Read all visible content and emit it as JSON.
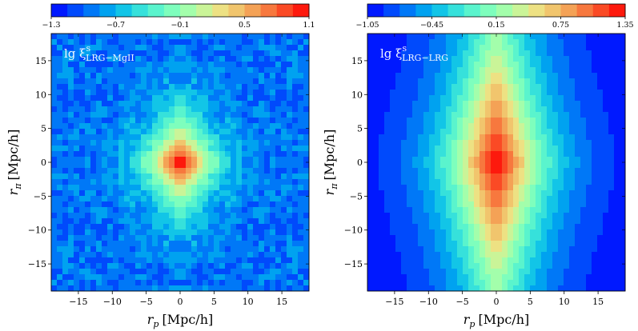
{
  "chart_data": [
    {
      "type": "heatmap",
      "label": "lg ξ^s_LRG−MgII",
      "label_main": "lg ξ",
      "label_sup": "s",
      "label_sub": "LRG−MgII",
      "xlabel": "r_p [Mpc/h]",
      "xlabel_main": "r",
      "xlabel_sub": "p",
      "xlabel_units": "[Mpc/h]",
      "ylabel": "r_π [Mpc/h]",
      "ylabel_main": "r",
      "ylabel_sub": "π",
      "ylabel_units": "[Mpc/h]",
      "xlim": [
        -19,
        19
      ],
      "ylim": [
        -19,
        19
      ],
      "xticks": [
        -15,
        -10,
        -5,
        0,
        5,
        10,
        15
      ],
      "yticks": [
        -15,
        -10,
        -5,
        0,
        5,
        10,
        15
      ],
      "xtick_labels": [
        "−15",
        "−10",
        "−5",
        "0",
        "5",
        "10",
        "15"
      ],
      "ytick_labels": [
        "−15",
        "−10",
        "−5",
        "0",
        "5",
        "10",
        "15"
      ],
      "colorbar": {
        "min": -1.3,
        "max": 1.1,
        "levels": 16,
        "ticks": [
          -1.3,
          -0.7,
          -0.1,
          0.5,
          1.1
        ],
        "tick_labels": [
          "−1.3",
          "−0.7",
          "−0.1",
          "0.5",
          "1.1"
        ]
      },
      "field": {
        "peak": 1.1,
        "base": -0.95,
        "sigma_p": 4.5,
        "sigma_pi": 6.0,
        "shape_exp": 1.2,
        "noise": 0.28,
        "seed": 7
      }
    },
    {
      "type": "heatmap",
      "label": "lg ξ^s_LRG−LRG",
      "label_main": "lg ξ",
      "label_sup": "s",
      "label_sub": "LRG−LRG",
      "xlabel": "r_p [Mpc/h]",
      "xlabel_main": "r",
      "xlabel_sub": "p",
      "xlabel_units": "[Mpc/h]",
      "ylabel": "r_π [Mpc/h]",
      "ylabel_main": "r",
      "ylabel_sub": "π",
      "ylabel_units": "[Mpc/h]",
      "xlim": [
        -19,
        19
      ],
      "ylim": [
        -19,
        19
      ],
      "xticks": [
        -15,
        -10,
        -5,
        0,
        5,
        10,
        15
      ],
      "yticks": [
        -15,
        -10,
        -5,
        0,
        5,
        10,
        15
      ],
      "xtick_labels": [
        "−15",
        "−10",
        "−5",
        "0",
        "5",
        "10",
        "15"
      ],
      "ytick_labels": [
        "−15",
        "−10",
        "−5",
        "0",
        "5",
        "10",
        "15"
      ],
      "colorbar": {
        "min": -1.05,
        "max": 1.35,
        "levels": 16,
        "ticks": [
          -1.05,
          -0.45,
          0.15,
          0.75,
          1.35
        ],
        "tick_labels": [
          "−1.05",
          "−0.45",
          "0.15",
          "0.75",
          "1.35"
        ]
      },
      "field": {
        "peak": 1.35,
        "base": -1.05,
        "sigma_p": 7.5,
        "sigma_pi": 24.0,
        "shape_exp": 1.1,
        "noise": 0.0,
        "seed": 3
      }
    }
  ]
}
